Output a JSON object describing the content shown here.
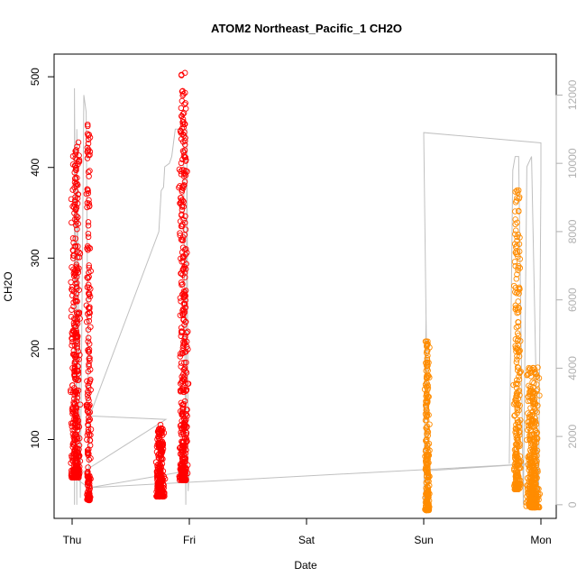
{
  "chart_data": {
    "type": "scatter",
    "title": "ATOM2 Northeast_Pacific_1 CH2O",
    "xlabel": "Date",
    "ylabel": "CH2O",
    "x_ticks": [
      "Thu",
      "Fri",
      "Sat",
      "Sun",
      "Mon"
    ],
    "x_range_days": [
      -0.1,
      4.1
    ],
    "ylim": [
      13,
      525
    ],
    "y_ticks": [
      100,
      200,
      300,
      400,
      500
    ],
    "y2lim": [
      -400,
      13200
    ],
    "y2_ticks": [
      0,
      2000,
      4000,
      6000,
      8000,
      10000,
      12000
    ],
    "grid": false,
    "series": [
      {
        "color": "#ff0000",
        "marker": "open-circle",
        "clusters": [
          {
            "x_center": 0.03,
            "x_spread": 0.05,
            "y_min": 58,
            "y_max": 432,
            "n": 420
          },
          {
            "x_center": 0.14,
            "x_spread": 0.025,
            "y_min": 33,
            "y_max": 457,
            "n": 200
          },
          {
            "x_center": 0.75,
            "x_spread": 0.05,
            "y_min": 37,
            "y_max": 117,
            "n": 260
          },
          {
            "x_center": 0.95,
            "x_spread": 0.05,
            "y_min": 55,
            "y_max": 505,
            "n": 420
          }
        ]
      },
      {
        "color": "#ff8c00",
        "marker": "open-circle",
        "clusters": [
          {
            "x_center": 3.03,
            "x_spread": 0.025,
            "y_min": 22,
            "y_max": 212,
            "n": 260
          },
          {
            "x_center": 3.8,
            "x_spread": 0.04,
            "y_min": 45,
            "y_max": 383,
            "n": 260
          },
          {
            "x_center": 3.93,
            "x_spread": 0.07,
            "y_min": 25,
            "y_max": 180,
            "n": 420
          }
        ]
      },
      {
        "color": "#c0c0c0",
        "marker": "line",
        "axis": "right",
        "points": [
          [
            0.02,
            0
          ],
          [
            0.02,
            12200
          ],
          [
            0.04,
            0
          ],
          [
            0.04,
            11000
          ],
          [
            0.07,
            200
          ],
          [
            0.1,
            12000
          ],
          [
            0.12,
            11500
          ],
          [
            0.14,
            1800
          ],
          [
            0.15,
            2400
          ],
          [
            0.14,
            500
          ],
          [
            0.02,
            800
          ],
          [
            0.8,
            2500
          ],
          [
            0.15,
            2600
          ],
          [
            0.74,
            8000
          ],
          [
            0.76,
            9200
          ],
          [
            0.78,
            9300
          ],
          [
            0.79,
            9900
          ],
          [
            0.83,
            10000
          ],
          [
            0.85,
            10200
          ],
          [
            0.88,
            11000
          ],
          [
            0.95,
            11000
          ],
          [
            0.97,
            0
          ],
          [
            0.98,
            11000
          ],
          [
            0.99,
            400
          ],
          [
            1.0,
            1000
          ],
          [
            0.15,
            500
          ],
          [
            3.93,
            1200
          ],
          [
            3.05,
            1000
          ],
          [
            3.0,
            0
          ],
          [
            3.02,
            5500
          ],
          [
            3.04,
            0
          ],
          [
            3.0,
            10900
          ],
          [
            4.0,
            10600
          ],
          [
            4.0,
            9500
          ],
          [
            3.98,
            0
          ],
          [
            3.92,
            10200
          ],
          [
            3.88,
            9900
          ],
          [
            3.85,
            0
          ],
          [
            3.81,
            10200
          ],
          [
            3.78,
            10200
          ],
          [
            3.76,
            9800
          ],
          [
            3.73,
            1200
          ]
        ]
      }
    ]
  }
}
